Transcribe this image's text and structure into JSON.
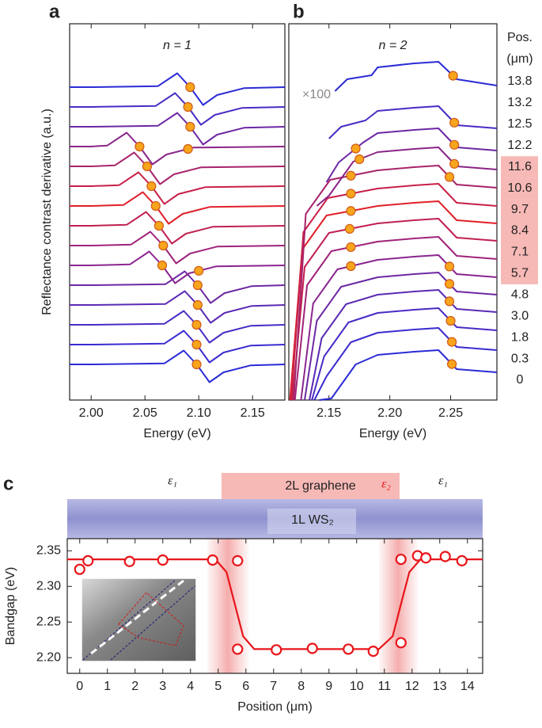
{
  "chart_data": [
    {
      "type": "line",
      "panel": "a",
      "title": "n = 1",
      "x_label": "Energy (eV)",
      "y_label": "Reflectance contrast derivative (a.u.)",
      "xlim": [
        1.98,
        2.18
      ],
      "ylim": [
        -1.8,
        17.2
      ],
      "xticks": [
        {
          "value": 2.0,
          "label": "2.00"
        },
        2.05,
        {
          "value": 2.1,
          "label": "2.10"
        },
        2.15
      ],
      "marker_color": "#f7a51c",
      "series": [
        {
          "color": "#2b2bd6",
          "x": [
            1.98,
            2.0,
            2.068,
            2.086,
            2.098,
            2.11,
            2.123,
            2.148,
            2.18
          ],
          "values": [
            0,
            0,
            0.05,
            0.7,
            0,
            -0.9,
            -0.4,
            -0.05,
            0
          ],
          "peaks": [
            2.098
          ]
        },
        {
          "color": "#3b2bd0",
          "x": [
            1.98,
            2.0,
            2.068,
            2.086,
            2.098,
            2.11,
            2.123,
            2.148,
            2.18
          ],
          "values": [
            1,
            1,
            1.05,
            1.7,
            1,
            0.1,
            0.6,
            0.95,
            1
          ],
          "peaks": [
            2.098
          ]
        },
        {
          "color": "#4a2bc4",
          "x": [
            1.98,
            2.0,
            2.068,
            2.086,
            2.098,
            2.11,
            2.123,
            2.148,
            2.18
          ],
          "values": [
            2,
            2,
            2.05,
            2.7,
            2,
            1.1,
            1.6,
            1.95,
            2
          ],
          "peaks": [
            2.098
          ]
        },
        {
          "color": "#5a2ab4",
          "x": [
            1.98,
            2.0,
            2.069,
            2.087,
            2.099,
            2.111,
            2.124,
            2.149,
            2.18
          ],
          "values": [
            3,
            3,
            3.05,
            3.7,
            3,
            2.1,
            2.6,
            2.95,
            3
          ],
          "peaks": [
            2.099
          ]
        },
        {
          "color": "#6c28a4",
          "x": [
            1.98,
            2.0,
            2.069,
            2.087,
            2.099,
            2.111,
            2.124,
            2.149,
            2.18
          ],
          "values": [
            4,
            4,
            4.05,
            4.7,
            4,
            3.1,
            3.6,
            3.95,
            4
          ],
          "peaks": [
            2.099
          ]
        },
        {
          "color": "#8a2590",
          "x": [
            1.98,
            2.0,
            2.036,
            2.054,
            2.066,
            2.078,
            2.091,
            2.116,
            2.18
          ],
          "values": [
            5,
            5,
            5.05,
            5.7,
            5,
            4.1,
            4.6,
            4.95,
            5
          ],
          "peaks": [
            2.066,
            2.1
          ]
        },
        {
          "color": "#a0237a",
          "x": [
            1.98,
            2.0,
            2.037,
            2.055,
            2.067,
            2.079,
            2.092,
            2.117,
            2.18
          ],
          "values": [
            6,
            6,
            6.05,
            6.7,
            6,
            5.1,
            5.6,
            5.95,
            6
          ],
          "peaks": [
            2.067
          ]
        },
        {
          "color": "#c02050",
          "x": [
            1.98,
            2.0,
            2.033,
            2.051,
            2.063,
            2.075,
            2.088,
            2.113,
            2.18
          ],
          "values": [
            7,
            7,
            7.05,
            7.7,
            7,
            6.1,
            6.6,
            6.95,
            7
          ],
          "peaks": [
            2.063
          ]
        },
        {
          "color": "#e0202a",
          "x": [
            1.98,
            2.0,
            2.03,
            2.048,
            2.06,
            2.072,
            2.085,
            2.11,
            2.18
          ],
          "values": [
            8,
            8,
            8.05,
            8.7,
            8,
            7.1,
            7.6,
            7.95,
            8
          ],
          "peaks": [
            2.06
          ]
        },
        {
          "color": "#c82048",
          "x": [
            1.98,
            2.0,
            2.026,
            2.044,
            2.056,
            2.068,
            2.081,
            2.106,
            2.18
          ],
          "values": [
            9,
            9,
            9.05,
            9.7,
            9,
            8.1,
            8.6,
            8.95,
            9
          ],
          "peaks": [
            2.056
          ]
        },
        {
          "color": "#a8236a",
          "x": [
            1.98,
            2.0,
            2.022,
            2.04,
            2.052,
            2.064,
            2.077,
            2.102,
            2.18
          ],
          "values": [
            10,
            10,
            10.05,
            10.7,
            10,
            9.1,
            9.6,
            9.95,
            10
          ],
          "peaks": [
            2.052
          ]
        },
        {
          "color": "#8a2588",
          "x": [
            1.98,
            2.0,
            2.015,
            2.033,
            2.045,
            2.057,
            2.07,
            2.095,
            2.18
          ],
          "values": [
            11,
            11,
            11.05,
            11.7,
            11,
            10.1,
            10.6,
            10.95,
            11
          ],
          "peaks": [
            2.045,
            2.09
          ]
        },
        {
          "color": "#6c28a4",
          "x": [
            1.98,
            2.0,
            2.062,
            2.08,
            2.092,
            2.104,
            2.117,
            2.142,
            2.18
          ],
          "values": [
            12,
            12,
            12.05,
            12.7,
            12,
            11.1,
            11.6,
            11.95,
            12
          ],
          "peaks": [
            2.092
          ]
        },
        {
          "color": "#4a2bc4",
          "x": [
            1.98,
            2.0,
            2.06,
            2.078,
            2.09,
            2.102,
            2.115,
            2.14,
            2.18
          ],
          "values": [
            13,
            13,
            13.05,
            13.7,
            13,
            12.1,
            12.6,
            12.95,
            13
          ],
          "peaks": [
            2.09
          ]
        },
        {
          "color": "#2b2bd6",
          "x": [
            1.98,
            2.0,
            2.062,
            2.08,
            2.092,
            2.104,
            2.117,
            2.142,
            2.18
          ],
          "values": [
            14,
            14,
            14.05,
            14.7,
            14,
            13.1,
            13.6,
            13.95,
            14
          ],
          "peaks": [
            2.092
          ]
        }
      ]
    },
    {
      "type": "line",
      "panel": "b",
      "title": "n = 2",
      "x_label": "Energy (eV)",
      "annotation": "×100",
      "legend_title": [
        "Pos.",
        "(μm)"
      ],
      "xlim": [
        2.117,
        2.288
      ],
      "ylim": [
        -1.8,
        17.2
      ],
      "xticks": [
        2.15,
        {
          "value": 2.2,
          "label": "2.20"
        },
        2.25
      ],
      "marker_color": "#f7a51c",
      "highlight_color": "#f7b9b6",
      "series": [
        {
          "name": "0",
          "color": "#2b2bd6",
          "highlight": false,
          "x": [
            2.142,
            2.152,
            2.172,
            2.19,
            2.22,
            2.24,
            2.255,
            2.288
          ],
          "values": [
            -1.8,
            -1.72,
            0,
            0.48,
            0.64,
            0.72,
            -0.24,
            -0.4
          ],
          "peaks": [
            2.251
          ]
        },
        {
          "name": "0.3",
          "color": "#3b2bd0",
          "highlight": false,
          "x": [
            2.138,
            2.148,
            2.168,
            2.19,
            2.22,
            2.24,
            2.255,
            2.288
          ],
          "values": [
            -1.8,
            -0.6,
            1.12,
            1.6,
            1.76,
            1.84,
            0.88,
            0.72
          ],
          "peaks": [
            2.251
          ]
        },
        {
          "name": "1.8",
          "color": "#4a2bc4",
          "highlight": false,
          "x": [
            2.136,
            2.146,
            2.166,
            2.19,
            2.22,
            2.24,
            2.255,
            2.288
          ],
          "values": [
            -1.8,
            0.4,
            2.12,
            2.6,
            2.76,
            2.84,
            1.88,
            1.72
          ],
          "peaks": [
            2.25
          ]
        },
        {
          "name": "3.0",
          "color": "#5a2ab4",
          "highlight": false,
          "x": [
            2.134,
            2.144,
            2.164,
            2.19,
            2.22,
            2.24,
            2.255,
            2.288
          ],
          "values": [
            -1.8,
            1.32,
            3.04,
            3.52,
            3.68,
            3.76,
            2.8,
            2.64
          ],
          "peaks": [
            2.249
          ]
        },
        {
          "name": "4.8",
          "color": "#6c28a4",
          "highlight": false,
          "x": [
            2.13,
            2.14,
            2.16,
            2.19,
            2.22,
            2.24,
            2.255,
            2.288
          ],
          "values": [
            -1.8,
            2.2,
            3.92,
            4.4,
            4.56,
            4.64,
            3.68,
            3.52
          ],
          "peaks": [
            2.249
          ]
        },
        {
          "name": "5.7",
          "color": "#8a2590",
          "highlight": true,
          "x": [
            2.127,
            2.137,
            2.157,
            2.19,
            2.22,
            2.24,
            2.255,
            2.288
          ],
          "values": [
            -1.8,
            3.08,
            4.8,
            5.28,
            5.44,
            5.52,
            4.56,
            4.4
          ],
          "peaks": [
            2.168,
            2.249
          ]
        },
        {
          "name": "7.1",
          "color": "#a0237a",
          "highlight": true,
          "x": [
            2.122,
            2.132,
            2.152,
            2.19,
            2.22,
            2.24,
            2.255,
            2.288
          ],
          "values": [
            -1.8,
            4,
            5.72,
            6.2,
            6.36,
            6.44,
            5.48,
            5.32
          ],
          "peaks": [
            2.168
          ]
        },
        {
          "name": "8.4",
          "color": "#c02050",
          "highlight": true,
          "x": [
            2.12,
            2.13,
            2.15,
            2.19,
            2.22,
            2.24,
            2.255,
            2.288
          ],
          "values": [
            -1.8,
            4.92,
            6.64,
            7.12,
            7.28,
            7.36,
            6.4,
            6.24
          ],
          "peaks": [
            2.167
          ]
        },
        {
          "name": "9.7",
          "color": "#e0202a",
          "highlight": true,
          "x": [
            2.118,
            2.128,
            2.148,
            2.19,
            2.22,
            2.24,
            2.255,
            2.288
          ],
          "values": [
            -1.8,
            5.8,
            7.52,
            8,
            8.16,
            8.24,
            7.28,
            7.12
          ],
          "peaks": [
            2.168
          ]
        },
        {
          "name": "10.6",
          "color": "#c82048",
          "highlight": true,
          "x": [
            2.119,
            2.129,
            2.149,
            2.19,
            2.22,
            2.24,
            2.255,
            2.288
          ],
          "values": [
            -1.8,
            6.68,
            8.4,
            8.88,
            9.04,
            9.12,
            8.16,
            8
          ],
          "peaks": [
            2.168
          ]
        },
        {
          "name": "11.6",
          "color": "#a8236a",
          "highlight": true,
          "x": [
            2.121,
            2.131,
            2.151,
            2.19,
            2.22,
            2.24,
            2.255,
            2.288
          ],
          "values": [
            -1.8,
            7.6,
            9.32,
            9.8,
            9.96,
            10.04,
            9.08,
            8.92
          ],
          "peaks": [
            2.168,
            2.249
          ]
        },
        {
          "name": "12.2",
          "color": "#8a2588",
          "highlight": false,
          "x": [
            2.14,
            2.15,
            2.17,
            2.19,
            2.22,
            2.24,
            2.255,
            2.288
          ],
          "values": [
            8,
            8.52,
            10.24,
            10.72,
            10.88,
            10.96,
            10,
            9.84
          ],
          "peaks": [
            2.175,
            2.253
          ]
        },
        {
          "name": "12.5",
          "color": "#6c28a4",
          "highlight": false,
          "x": [
            2.148,
            2.158,
            2.178,
            2.19,
            2.22,
            2.24,
            2.255,
            2.288
          ],
          "values": [
            9.2,
            10.2,
            11.2,
            11.68,
            11.84,
            11.92,
            10.96,
            10.8
          ],
          "peaks": [
            2.172,
            2.253
          ]
        },
        {
          "name": "13.2",
          "color": "#4a2bc4",
          "highlight": false,
          "x": [
            2.15,
            2.16,
            2.18,
            2.19,
            2.22,
            2.24,
            2.255,
            2.288
          ],
          "values": [
            11.4,
            12,
            12.32,
            12.8,
            12.96,
            13.04,
            12.08,
            11.92
          ],
          "peaks": [
            2.253
          ]
        },
        {
          "name": "13.8",
          "color": "#2b2bd6",
          "highlight": false,
          "x": [
            2.155,
            2.165,
            2.185,
            2.19,
            2.22,
            2.24,
            2.255,
            2.288
          ],
          "values": [
            13.8,
            14.4,
            14.6,
            15,
            15.2,
            15.28,
            14.4,
            14.08
          ],
          "peaks": [
            2.252
          ]
        }
      ]
    },
    {
      "type": "scatter",
      "panel": "c",
      "x_label": "Position (μm)",
      "y_label": "Bandgap (eV)",
      "graphene_label": "2L graphene",
      "substrate_label": "1L WS₂",
      "eps_labels": [
        "ε₁",
        "ε₂",
        "ε₁"
      ],
      "xlim": [
        -0.45,
        14.55
      ],
      "ylim": [
        2.178,
        2.367
      ],
      "xticks": [
        0,
        1,
        2,
        3,
        4,
        5,
        6,
        7,
        8,
        9,
        10,
        11,
        12,
        13,
        14
      ],
      "yticks": [
        {
          "value": 2.2,
          "label": "2.20"
        },
        2.25,
        {
          "value": 2.3,
          "label": "2.30"
        },
        2.35
      ],
      "color": "#e8161b",
      "shaded_regions": [
        [
          4.6,
          6.1
        ],
        [
          10.8,
          12.2
        ]
      ],
      "x": [
        0,
        0.3,
        1.8,
        3.0,
        4.8,
        5.7,
        5.7,
        7.1,
        8.4,
        9.7,
        10.6,
        11.6,
        11.6,
        12.2,
        12.5,
        13.2,
        13.8
      ],
      "values": [
        2.324,
        2.336,
        2.335,
        2.337,
        2.337,
        2.336,
        2.212,
        2.211,
        2.213,
        2.212,
        2.209,
        2.338,
        2.221,
        2.343,
        2.34,
        2.342,
        2.336
      ],
      "fit": {
        "x": [
          -0.45,
          4.9,
          5.3,
          5.6,
          5.9,
          6.3,
          10.8,
          11.3,
          11.6,
          11.9,
          12.3,
          14.55
        ],
        "values": [
          2.338,
          2.338,
          2.32,
          2.275,
          2.23,
          2.212,
          2.212,
          2.23,
          2.275,
          2.32,
          2.338,
          2.338
        ]
      }
    }
  ]
}
